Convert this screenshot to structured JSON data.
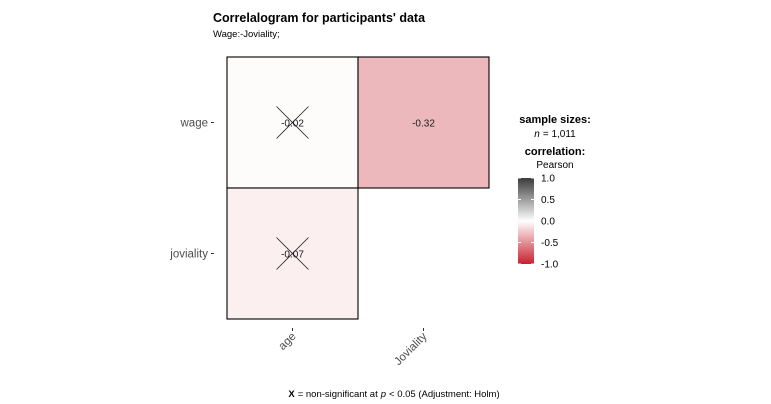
{
  "chart_data": {
    "type": "heatmap",
    "title": "Correlalogram for participants' data",
    "subtitle": "Wage:-Joviality;",
    "rows": [
      "wage",
      "joviality"
    ],
    "columns": [
      "age",
      "Joviality"
    ],
    "cells": [
      {
        "row": "wage",
        "column": "age",
        "value": -0.02,
        "label": "-0.02",
        "significant": false
      },
      {
        "row": "wage",
        "column": "Joviality",
        "value": -0.32,
        "label": "-0.32",
        "significant": true
      },
      {
        "row": "joviality",
        "column": "age",
        "value": -0.07,
        "label": "-0.07",
        "significant": false
      }
    ],
    "color_scale": {
      "low": "#c8202f",
      "mid": "#ffffff",
      "high": "#3b3b3b",
      "limits": [
        -1.0,
        1.0
      ],
      "ticks": [
        "1.0",
        "0.5",
        "0.0",
        "-0.5",
        "-1.0"
      ]
    },
    "legend": {
      "sample_sizes_title": "sample sizes:",
      "n_symbol": "n",
      "n_value": "= 1,011",
      "correlation_title": "correlation:",
      "method": "Pearson"
    },
    "caption": {
      "symbol": "X",
      "text_1": "= non-significant at",
      "p_symbol": "p",
      "text_2": "< 0.05 (Adjustment: Holm)"
    }
  }
}
